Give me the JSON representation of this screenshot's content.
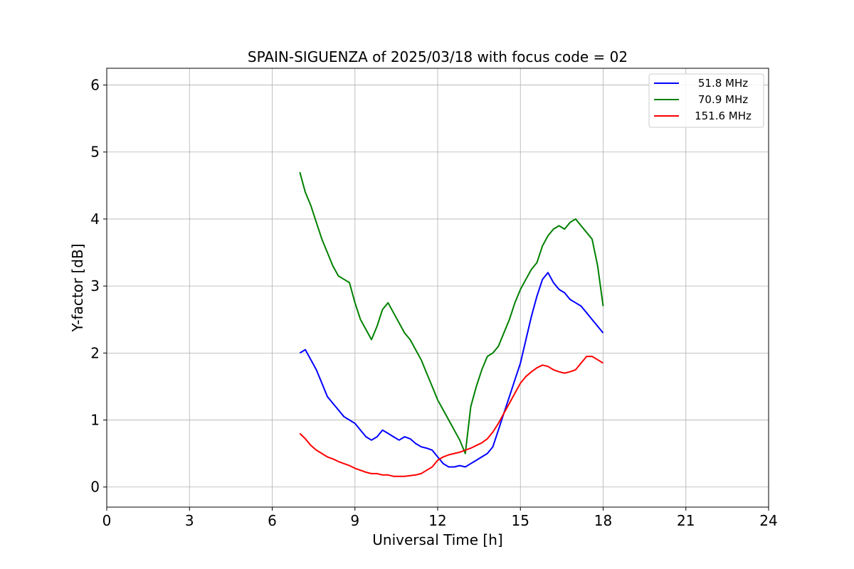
{
  "chart_data": {
    "type": "line",
    "title": "SPAIN-SIGUENZA of 2025/03/18 with focus code = 02",
    "xlabel": "Universal Time [h]",
    "ylabel": "Y-factor [dB]",
    "xlim": [
      0,
      24
    ],
    "ylim": [
      -0.3,
      6.25
    ],
    "xticks": [
      0,
      3,
      6,
      9,
      12,
      15,
      18,
      21,
      24
    ],
    "yticks": [
      0,
      1,
      2,
      3,
      4,
      5,
      6
    ],
    "grid": true,
    "legend_position": "top-right",
    "series": [
      {
        "name": "51.8 MHz",
        "color": "#0000ff",
        "x": [
          7.0,
          7.2,
          7.4,
          7.6,
          7.8,
          8.0,
          8.2,
          8.4,
          8.6,
          8.8,
          9.0,
          9.2,
          9.4,
          9.6,
          9.8,
          10.0,
          10.2,
          10.4,
          10.6,
          10.8,
          11.0,
          11.2,
          11.4,
          11.6,
          11.8,
          12.0,
          12.2,
          12.4,
          12.6,
          12.8,
          13.0,
          13.2,
          13.4,
          13.6,
          13.8,
          14.0,
          14.2,
          14.4,
          14.6,
          14.8,
          15.0,
          15.2,
          15.4,
          15.6,
          15.8,
          16.0,
          16.2,
          16.4,
          16.6,
          16.8,
          17.0,
          17.2,
          17.4,
          17.6,
          17.8,
          18.0
        ],
        "y": [
          2.0,
          2.05,
          1.9,
          1.75,
          1.55,
          1.35,
          1.25,
          1.15,
          1.05,
          1.0,
          0.95,
          0.85,
          0.75,
          0.7,
          0.75,
          0.85,
          0.8,
          0.75,
          0.7,
          0.75,
          0.72,
          0.65,
          0.6,
          0.58,
          0.55,
          0.45,
          0.35,
          0.3,
          0.3,
          0.32,
          0.3,
          0.35,
          0.4,
          0.45,
          0.5,
          0.6,
          0.85,
          1.1,
          1.35,
          1.6,
          1.85,
          2.2,
          2.55,
          2.85,
          3.1,
          3.2,
          3.05,
          2.95,
          2.9,
          2.8,
          2.75,
          2.7,
          2.6,
          2.5,
          2.4,
          2.3
        ]
      },
      {
        "name": "70.9 MHz",
        "color": "#008000",
        "x": [
          7.0,
          7.2,
          7.4,
          7.6,
          7.8,
          8.0,
          8.2,
          8.4,
          8.6,
          8.8,
          9.0,
          9.2,
          9.4,
          9.6,
          9.8,
          10.0,
          10.2,
          10.4,
          10.6,
          10.8,
          11.0,
          11.2,
          11.4,
          11.6,
          11.8,
          12.0,
          12.2,
          12.4,
          12.6,
          12.8,
          13.0,
          13.2,
          13.4,
          13.6,
          13.8,
          14.0,
          14.2,
          14.4,
          14.6,
          14.8,
          15.0,
          15.2,
          15.4,
          15.6,
          15.8,
          16.0,
          16.2,
          16.4,
          16.6,
          16.8,
          17.0,
          17.2,
          17.4,
          17.6,
          17.8,
          18.0
        ],
        "y": [
          4.7,
          4.4,
          4.2,
          3.95,
          3.7,
          3.5,
          3.3,
          3.15,
          3.1,
          3.05,
          2.75,
          2.5,
          2.35,
          2.2,
          2.4,
          2.65,
          2.75,
          2.6,
          2.45,
          2.3,
          2.2,
          2.05,
          1.9,
          1.7,
          1.5,
          1.3,
          1.15,
          1.0,
          0.85,
          0.7,
          0.5,
          1.2,
          1.5,
          1.75,
          1.95,
          2.0,
          2.1,
          2.3,
          2.5,
          2.75,
          2.95,
          3.1,
          3.25,
          3.35,
          3.6,
          3.75,
          3.85,
          3.9,
          3.85,
          3.95,
          4.0,
          3.9,
          3.8,
          3.7,
          3.3,
          2.7
        ]
      },
      {
        "name": "151.6 MHz",
        "color": "#ff0000",
        "x": [
          7.0,
          7.2,
          7.4,
          7.6,
          7.8,
          8.0,
          8.2,
          8.4,
          8.6,
          8.8,
          9.0,
          9.2,
          9.4,
          9.6,
          9.8,
          10.0,
          10.2,
          10.4,
          10.6,
          10.8,
          11.0,
          11.2,
          11.4,
          11.6,
          11.8,
          12.0,
          12.2,
          12.4,
          12.6,
          12.8,
          13.0,
          13.2,
          13.4,
          13.6,
          13.8,
          14.0,
          14.2,
          14.4,
          14.6,
          14.8,
          15.0,
          15.2,
          15.4,
          15.6,
          15.8,
          16.0,
          16.2,
          16.4,
          16.6,
          16.8,
          17.0,
          17.2,
          17.4,
          17.6,
          17.8,
          18.0
        ],
        "y": [
          0.8,
          0.72,
          0.62,
          0.55,
          0.5,
          0.45,
          0.42,
          0.38,
          0.35,
          0.32,
          0.28,
          0.25,
          0.22,
          0.2,
          0.2,
          0.18,
          0.18,
          0.16,
          0.16,
          0.16,
          0.17,
          0.18,
          0.2,
          0.25,
          0.3,
          0.4,
          0.45,
          0.48,
          0.5,
          0.52,
          0.55,
          0.58,
          0.62,
          0.66,
          0.72,
          0.82,
          0.95,
          1.1,
          1.25,
          1.4,
          1.55,
          1.65,
          1.72,
          1.78,
          1.82,
          1.8,
          1.75,
          1.72,
          1.7,
          1.72,
          1.75,
          1.85,
          1.95,
          1.95,
          1.9,
          1.85
        ]
      }
    ]
  }
}
